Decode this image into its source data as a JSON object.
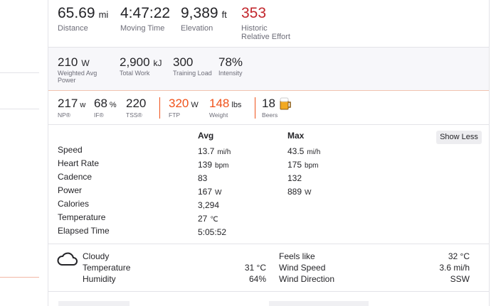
{
  "summary": [
    {
      "value": "65.69",
      "unit": "mi",
      "label": [
        "Distance"
      ]
    },
    {
      "value": "4:47:22",
      "label": [
        "Moving Time"
      ]
    },
    {
      "value": "9,389",
      "unit": "ft",
      "label": [
        "Elevation"
      ]
    },
    {
      "value": "353",
      "label": [
        "Historic",
        "Relative Effort"
      ]
    }
  ],
  "power": [
    {
      "value": "210",
      "unit": "W",
      "label": [
        "Weighted Avg",
        "Power"
      ]
    },
    {
      "value": "2,900",
      "unit": "kJ",
      "label": [
        "Total Work"
      ]
    },
    {
      "value": "300",
      "label": [
        "Training Load"
      ]
    },
    {
      "value": "78%",
      "label": [
        "Intensity"
      ]
    }
  ],
  "extra": [
    {
      "value": "217",
      "unit": "w",
      "label": "NP®"
    },
    {
      "value": "68",
      "unit": "%",
      "label": "IF®"
    },
    {
      "value": "220",
      "label": "TSS®"
    },
    {
      "value": "320",
      "unit": "W",
      "label": "FTP"
    },
    {
      "value": "148",
      "unit": "lbs",
      "label": "Weight"
    },
    {
      "value": "18",
      "label": "Beers"
    }
  ],
  "table": {
    "headers": [
      "Avg",
      "Max"
    ],
    "button": "Show Less",
    "rows": [
      {
        "label": "Speed",
        "avg": "13.7",
        "avg_unit": "mi/h",
        "max": "43.5",
        "max_unit": "mi/h"
      },
      {
        "label": "Heart Rate",
        "avg": "139",
        "avg_unit": "bpm",
        "max": "175",
        "max_unit": "bpm"
      },
      {
        "label": "Cadence",
        "avg": "83",
        "max": "132"
      },
      {
        "label": "Power",
        "avg": "167",
        "avg_unit": "W",
        "max": "889",
        "max_unit": "W"
      },
      {
        "label": "Calories",
        "avg": "3,294"
      },
      {
        "label": "Temperature",
        "avg": "27",
        "avg_unit": "℃"
      },
      {
        "label": "Elapsed Time",
        "avg": "5:05:52"
      }
    ]
  },
  "weather": {
    "condition": "Cloudy",
    "left": [
      {
        "label": "Temperature",
        "value": "31 °C"
      },
      {
        "label": "Humidity",
        "value": "64%"
      }
    ],
    "right": [
      {
        "label": "Feels like",
        "value": "32 °C"
      },
      {
        "label": "Wind Speed",
        "value": "3.6 mi/h"
      },
      {
        "label": "Wind Direction",
        "value": "SSW"
      }
    ]
  }
}
